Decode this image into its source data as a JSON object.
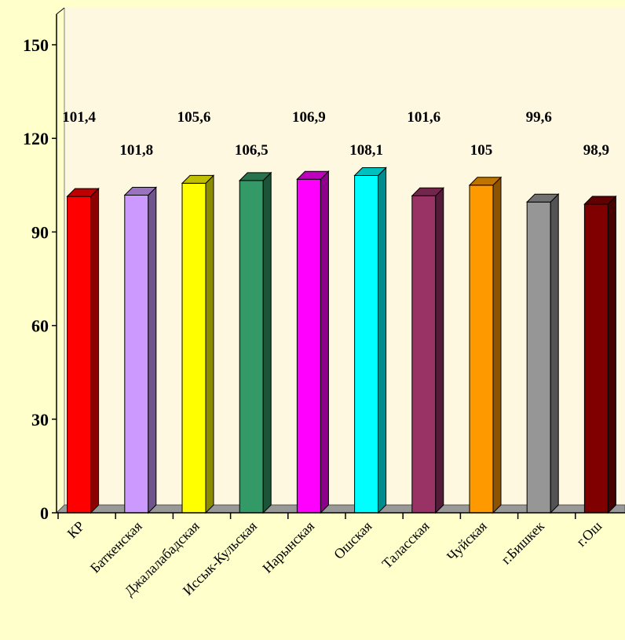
{
  "chart_data": {
    "type": "bar",
    "categories": [
      "КР",
      "Баткенская",
      "Джалалабадская",
      "Иссык-Кульская",
      "Нарынская",
      "Ошская",
      "Таласская",
      "Чуйская",
      "г.Бишкек",
      "г.Ош"
    ],
    "values": [
      101.4,
      101.8,
      105.6,
      106.5,
      106.9,
      108.1,
      101.6,
      105,
      99.6,
      98.9
    ],
    "value_labels": [
      "101,4",
      "101,8",
      "105,6",
      "106,5",
      "106,9",
      "108,1",
      "101,6",
      "105",
      "99,6",
      "98,9"
    ],
    "bar_colors": [
      "#FF0000",
      "#CC99FF",
      "#FFFF00",
      "#339966",
      "#FF00FF",
      "#00FFFF",
      "#993366",
      "#FF9900",
      "#969696",
      "#800000"
    ],
    "ylim": [
      0,
      150
    ],
    "yticks": [
      "0",
      "30",
      "60",
      "90",
      "120",
      "150"
    ],
    "title": "",
    "xlabel": "",
    "ylabel": "",
    "legend": false,
    "grid": false,
    "style": "3d-columns"
  },
  "colors": {
    "page_background": "#FFFFCC",
    "plot_background": "#FFF8E0",
    "floor": "#999999"
  }
}
